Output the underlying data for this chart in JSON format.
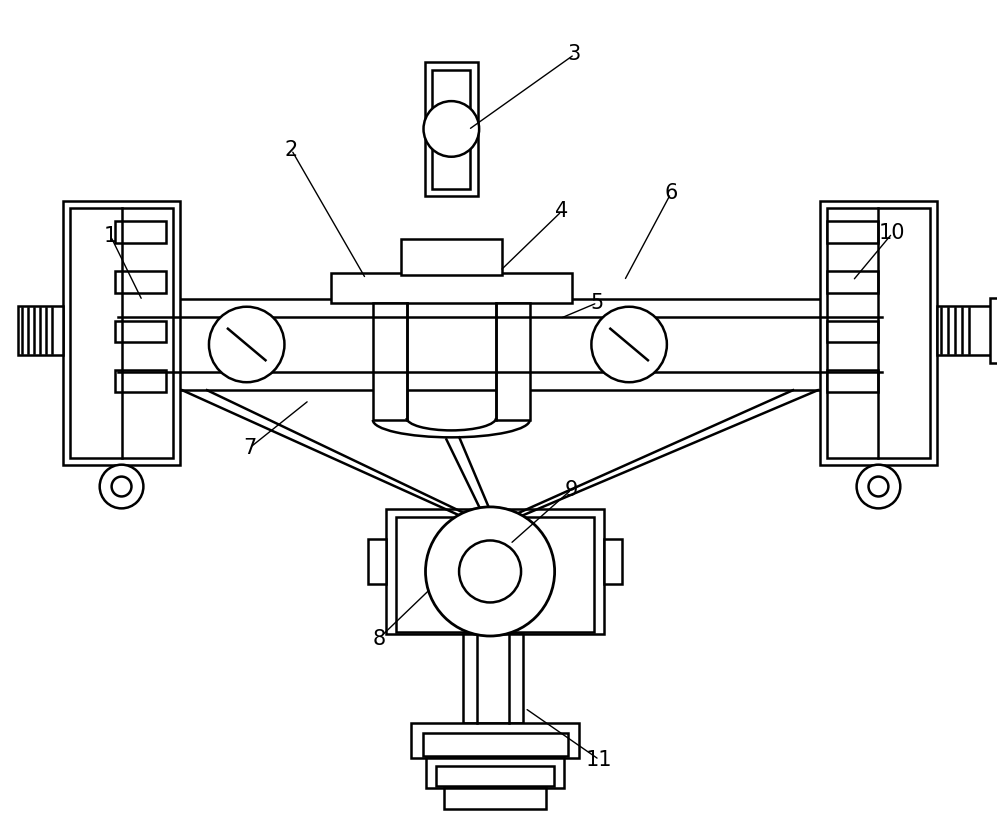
{
  "bg_color": "#ffffff",
  "line_color": "#000000",
  "lw": 1.8,
  "lw_thick": 2.2,
  "fig_width": 10.0,
  "fig_height": 8.32
}
